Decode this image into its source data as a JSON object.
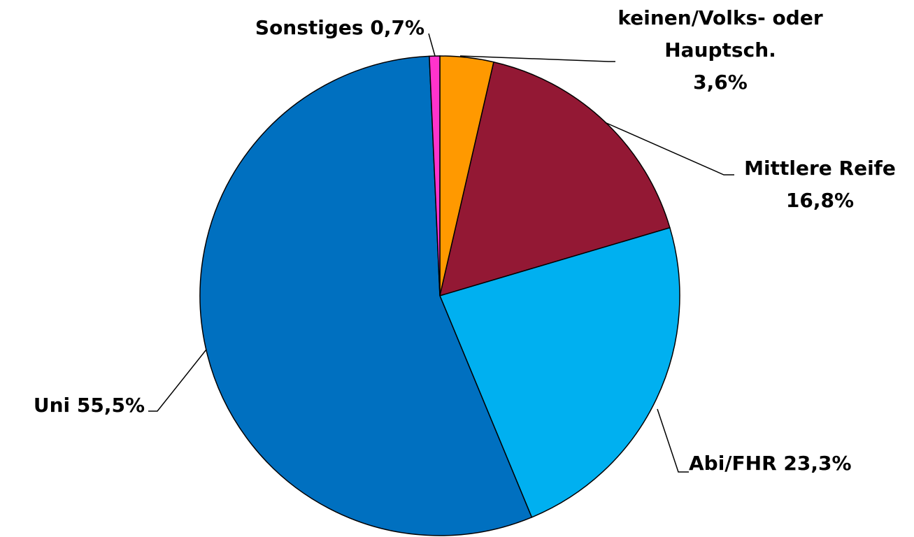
{
  "chart_data": {
    "type": "pie",
    "categories": [
      "keinen/Volks- oder Hauptsch.",
      "Mittlere Reife",
      "Abi/FHR",
      "Uni",
      "Sonstiges"
    ],
    "values": [
      3.6,
      16.8,
      23.3,
      55.5,
      0.7
    ],
    "value_labels": [
      "3,6%",
      "16,8%",
      "23,3%",
      "55,5%",
      "0,7%"
    ],
    "colors": [
      "#ff9900",
      "#931834",
      "#00b0f0",
      "#0070c0",
      "#ff33cc"
    ]
  }
}
